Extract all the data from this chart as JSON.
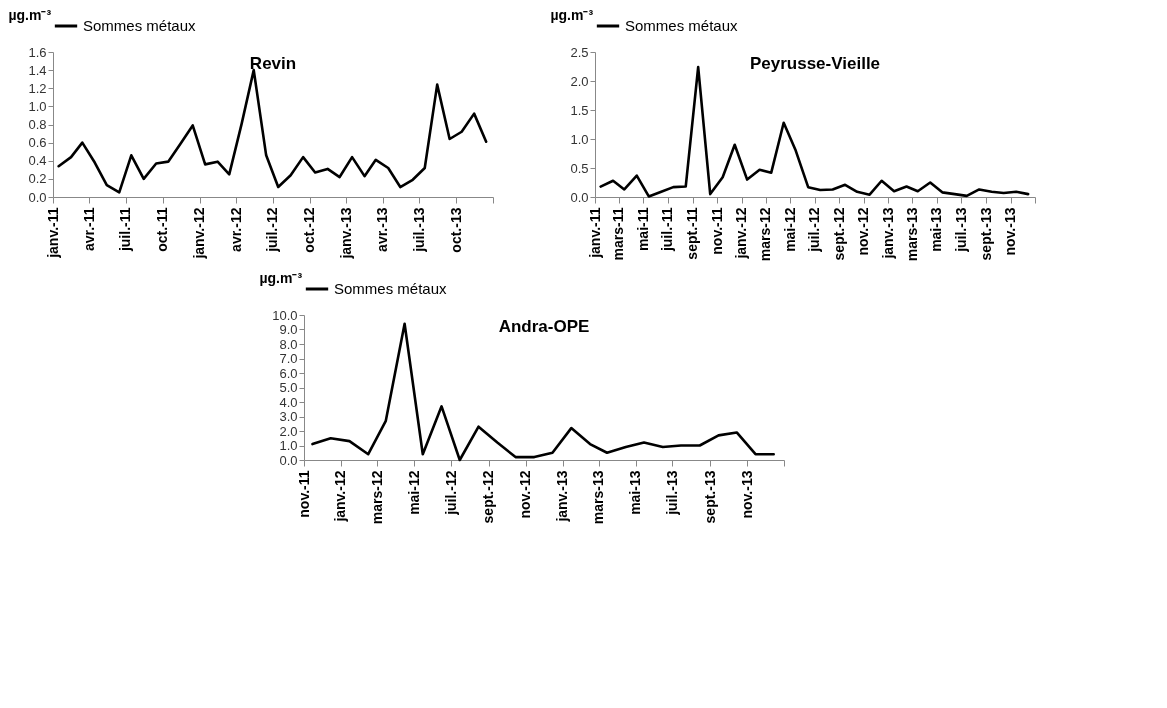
{
  "chart_data": [
    {
      "type": "line",
      "title": "Revin",
      "ylabel": "µg.m⁻³",
      "legend": "top",
      "grid": false,
      "x": [
        "2011-01-15",
        "2011-02-15",
        "2011-03-15",
        "2011-04-15",
        "2011-05-15",
        "2011-06-15",
        "2011-07-15",
        "2011-08-15",
        "2011-09-15",
        "2011-10-15",
        "2011-11-15",
        "2011-12-15",
        "2012-01-15",
        "2012-02-15",
        "2012-03-15",
        "2012-04-15",
        "2012-05-15",
        "2012-06-15",
        "2012-07-15",
        "2012-08-15",
        "2012-09-15",
        "2012-10-15",
        "2012-11-15",
        "2012-12-15",
        "2013-01-15",
        "2013-02-15",
        "2013-03-15",
        "2013-04-15",
        "2013-05-15",
        "2013-06-15",
        "2013-07-15",
        "2013-08-15",
        "2013-09-15",
        "2013-10-15",
        "2013-11-15",
        "2013-12-15"
      ],
      "series": [
        {
          "name": "Sommes métaux",
          "color": "#000000",
          "values": [
            0.34,
            0.44,
            0.6,
            0.38,
            0.13,
            0.05,
            0.46,
            0.2,
            0.37,
            0.39,
            0.59,
            0.79,
            0.36,
            0.39,
            0.25,
            0.81,
            1.4,
            0.46,
            0.11,
            0.24,
            0.44,
            0.27,
            0.31,
            0.22,
            0.44,
            0.23,
            0.41,
            0.32,
            0.11,
            0.19,
            0.32,
            1.24,
            0.64,
            0.72,
            0.92,
            0.61
          ]
        }
      ],
      "xlim": [
        "2011-01-01",
        "2014-01-01"
      ],
      "xticks": [
        {
          "value": "2011-01-01",
          "label": "janv.-11"
        },
        {
          "value": "2011-04-01",
          "label": "avr.-11"
        },
        {
          "value": "2011-07-01",
          "label": "juil.-11"
        },
        {
          "value": "2011-10-01",
          "label": "oct.-11"
        },
        {
          "value": "2012-01-01",
          "label": "janv.-12"
        },
        {
          "value": "2012-04-01",
          "label": "avr.-12"
        },
        {
          "value": "2012-07-01",
          "label": "juil.-12"
        },
        {
          "value": "2012-10-01",
          "label": "oct.-12"
        },
        {
          "value": "2013-01-01",
          "label": "janv.-13"
        },
        {
          "value": "2013-04-01",
          "label": "avr.-13"
        },
        {
          "value": "2013-07-01",
          "label": "juil.-13"
        },
        {
          "value": "2013-10-01",
          "label": "oct.-13"
        },
        {
          "value": "2014-01-01",
          "label": null
        }
      ],
      "ylim": [
        0,
        1.6
      ],
      "yticks": [
        {
          "value": 0,
          "label": "0.0"
        },
        0.2,
        0.4,
        0.6,
        0.8,
        {
          "value": 1,
          "label": "1.0"
        },
        1.2,
        1.4,
        1.6
      ]
    },
    {
      "type": "line",
      "title": "Peyrusse-Vieille",
      "ylabel": "µg.m⁻³",
      "legend": "top",
      "grid": false,
      "x": [
        "2011-01-15",
        "2011-02-15",
        "2011-03-15",
        "2011-04-15",
        "2011-05-15",
        "2011-06-15",
        "2011-07-15",
        "2011-08-15",
        "2011-09-15",
        "2011-10-15",
        "2011-11-15",
        "2011-12-15",
        "2012-01-15",
        "2012-02-15",
        "2012-03-15",
        "2012-04-15",
        "2012-05-15",
        "2012-06-15",
        "2012-07-15",
        "2012-08-15",
        "2012-09-15",
        "2012-10-15",
        "2012-11-15",
        "2012-12-15",
        "2013-01-15",
        "2013-02-15",
        "2013-03-15",
        "2013-04-15",
        "2013-05-15",
        "2013-06-15",
        "2013-07-15",
        "2013-08-15",
        "2013-09-15",
        "2013-10-15",
        "2013-11-15",
        "2013-12-15"
      ],
      "series": [
        {
          "name": "Sommes métaux",
          "color": "#000000",
          "values": [
            0.18,
            0.28,
            0.13,
            0.37,
            0.01,
            0.09,
            0.17,
            0.18,
            2.24,
            0.05,
            0.34,
            0.9,
            0.3,
            0.47,
            0.42,
            1.28,
            0.8,
            0.17,
            0.12,
            0.13,
            0.21,
            0.09,
            0.04,
            0.28,
            0.1,
            0.18,
            0.1,
            0.25,
            0.08,
            0.05,
            0.02,
            0.13,
            0.09,
            0.07,
            0.09,
            0.05
          ]
        }
      ],
      "xlim": [
        "2011-01-01",
        "2014-01-01"
      ],
      "xticks": [
        {
          "value": "2011-01-01",
          "label": "janv.-11"
        },
        {
          "value": "2011-03-01",
          "label": "mars-11"
        },
        {
          "value": "2011-05-01",
          "label": "mai-11"
        },
        {
          "value": "2011-07-01",
          "label": "juil.-11"
        },
        {
          "value": "2011-09-01",
          "label": "sept.-11"
        },
        {
          "value": "2011-11-01",
          "label": "nov.-11"
        },
        {
          "value": "2012-01-01",
          "label": "janv.-12"
        },
        {
          "value": "2012-03-01",
          "label": "mars-12"
        },
        {
          "value": "2012-05-01",
          "label": "mai-12"
        },
        {
          "value": "2012-07-01",
          "label": "juil.-12"
        },
        {
          "value": "2012-09-01",
          "label": "sept.-12"
        },
        {
          "value": "2012-11-01",
          "label": "nov.-12"
        },
        {
          "value": "2013-01-01",
          "label": "janv.-13"
        },
        {
          "value": "2013-03-01",
          "label": "mars-13"
        },
        {
          "value": "2013-05-01",
          "label": "mai-13"
        },
        {
          "value": "2013-07-01",
          "label": "juil.-13"
        },
        {
          "value": "2013-09-01",
          "label": "sept.-13"
        },
        {
          "value": "2013-11-01",
          "label": "nov.-13"
        },
        {
          "value": "2014-01-01",
          "label": null
        }
      ],
      "ylim": [
        0,
        2.5
      ],
      "yticks": [
        {
          "value": 0,
          "label": "0.0"
        },
        0.5,
        {
          "value": 1,
          "label": "1.0"
        },
        1.5,
        {
          "value": 2,
          "label": "2.0"
        },
        2.5
      ]
    },
    {
      "type": "line",
      "title": "Andra-OPE",
      "ylabel": "µg.m⁻³",
      "legend": "top",
      "grid": false,
      "x": [
        "2011-11-15",
        "2011-12-15",
        "2012-01-15",
        "2012-02-15",
        "2012-03-15",
        "2012-04-15",
        "2012-05-15",
        "2012-06-15",
        "2012-07-15",
        "2012-08-15",
        "2012-09-15",
        "2012-10-15",
        "2012-11-15",
        "2012-12-15",
        "2013-01-15",
        "2013-02-15",
        "2013-03-15",
        "2013-04-15",
        "2013-05-15",
        "2013-06-15",
        "2013-07-15",
        "2013-08-15",
        "2013-09-15",
        "2013-10-15",
        "2013-11-15",
        "2013-12-15"
      ],
      "series": [
        {
          "name": "Sommes métaux",
          "color": "#000000",
          "values": [
            1.1,
            1.5,
            1.3,
            0.4,
            2.7,
            9.4,
            0.4,
            3.7,
            0.0,
            2.3,
            1.2,
            0.2,
            0.2,
            0.5,
            2.2,
            1.1,
            0.5,
            0.9,
            1.2,
            0.9,
            1.0,
            1.0,
            1.7,
            1.9,
            0.4,
            0.4
          ]
        }
      ],
      "xlim": [
        "2011-11-01",
        "2014-01-01"
      ],
      "xticks": [
        {
          "value": "2011-11-01",
          "label": "nov.-11"
        },
        {
          "value": "2012-01-01",
          "label": "janv.-12"
        },
        {
          "value": "2012-03-01",
          "label": "mars-12"
        },
        {
          "value": "2012-05-01",
          "label": "mai-12"
        },
        {
          "value": "2012-07-01",
          "label": "juil.-12"
        },
        {
          "value": "2012-09-01",
          "label": "sept.-12"
        },
        {
          "value": "2012-11-01",
          "label": "nov.-12"
        },
        {
          "value": "2013-01-01",
          "label": "janv.-13"
        },
        {
          "value": "2013-03-01",
          "label": "mars-13"
        },
        {
          "value": "2013-05-01",
          "label": "mai-13"
        },
        {
          "value": "2013-07-01",
          "label": "juil.-13"
        },
        {
          "value": "2013-09-01",
          "label": "sept.-13"
        },
        {
          "value": "2013-11-01",
          "label": "nov.-13"
        },
        {
          "value": "2014-01-01",
          "label": null
        }
      ],
      "ylim": [
        0,
        10
      ],
      "yticks": [
        {
          "value": 0,
          "label": "0.0"
        },
        {
          "value": 1,
          "label": "1.0"
        },
        {
          "value": 2,
          "label": "2.0"
        },
        {
          "value": 3,
          "label": "3.0"
        },
        {
          "value": 4,
          "label": "4.0"
        },
        {
          "value": 5,
          "label": "5.0"
        },
        {
          "value": 6,
          "label": "6.0"
        },
        {
          "value": 7,
          "label": "7.0"
        },
        {
          "value": 8,
          "label": "8.0"
        },
        {
          "value": 9,
          "label": "9.0"
        },
        {
          "value": 10,
          "label": "10.0"
        }
      ]
    }
  ]
}
